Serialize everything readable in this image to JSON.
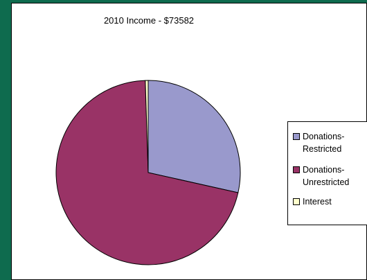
{
  "chart_data": {
    "type": "pie",
    "title": "2010 Income - $73582",
    "slices": [
      {
        "label_lines": [
          "Donations-",
          "Restricted"
        ],
        "value": 28.5,
        "color": "#9999cc"
      },
      {
        "label_lines": [
          "Donations-",
          "Unrestricted"
        ],
        "value": 71.0,
        "color": "#993366"
      },
      {
        "label_lines": [
          "Interest"
        ],
        "value": 0.5,
        "color": "#ffffcc"
      }
    ],
    "legend_placement": "right"
  }
}
